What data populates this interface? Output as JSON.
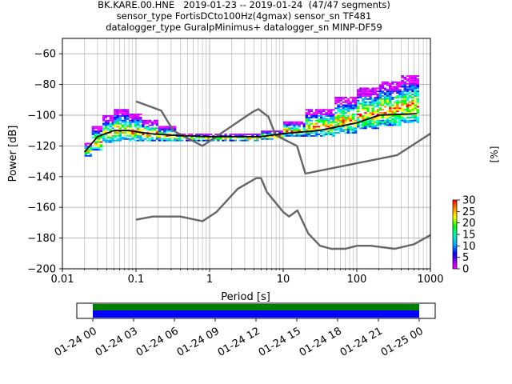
{
  "title_lines": [
    "BK.KARE.00.HNE   2019-01-23 -- 2019-01-24  (47/47 segments)",
    "sensor_type FortisDCto100Hz(4gmax) sensor_sn TF481",
    "datalogger_type GuralpMinimus+ datalogger_sn MINP-DF59"
  ],
  "colors": {
    "grid": "#b0b0b0",
    "noise_model": "#666666",
    "mean": "#000000",
    "coverage_green": "#008000",
    "coverage_blue": "#0000ff"
  },
  "chart_data": [
    {
      "type": "heatmap",
      "xlabel": "Period [s]",
      "ylabel": "Power [dB]",
      "x_scale": "log",
      "xlim": [
        0.01,
        1000
      ],
      "ylim": [
        -200,
        -50
      ],
      "x_ticks": [
        {
          "value": 0.01,
          "label": "0.01"
        },
        {
          "value": 0.1,
          "label": "0.1"
        },
        {
          "value": 1,
          "label": "1"
        },
        {
          "value": 10,
          "label": "10"
        },
        {
          "value": 100,
          "label": "100"
        },
        {
          "value": 1000,
          "label": "1000"
        }
      ],
      "y_ticks": [
        {
          "value": -60,
          "label": "−60"
        },
        {
          "value": -80,
          "label": "−80"
        },
        {
          "value": -100,
          "label": "−100"
        },
        {
          "value": -120,
          "label": "−120"
        },
        {
          "value": -140,
          "label": "−140"
        },
        {
          "value": -160,
          "label": "−160"
        },
        {
          "value": -180,
          "label": "−180"
        },
        {
          "value": -200,
          "label": "−200"
        }
      ],
      "grid": true,
      "colorbar": {
        "label": "[%]",
        "range": [
          0,
          30
        ],
        "ticks": [
          {
            "value": 0,
            "label": "0"
          },
          {
            "value": 5,
            "label": "5"
          },
          {
            "value": 10,
            "label": "10"
          },
          {
            "value": 15,
            "label": "15"
          },
          {
            "value": 20,
            "label": "20"
          },
          {
            "value": 25,
            "label": "25"
          },
          {
            "value": 30,
            "label": "30"
          }
        ]
      },
      "density_bands": [
        {
          "period_range": [
            0.02,
            0.025
          ],
          "db_range": [
            -126,
            -118
          ]
        },
        {
          "period_range": [
            0.025,
            0.035
          ],
          "db_range": [
            -122,
            -107
          ]
        },
        {
          "period_range": [
            0.035,
            0.05
          ],
          "db_range": [
            -117,
            -100
          ]
        },
        {
          "period_range": [
            0.05,
            0.08
          ],
          "db_range": [
            -116,
            -96
          ]
        },
        {
          "period_range": [
            0.08,
            0.12
          ],
          "db_range": [
            -116,
            -99
          ]
        },
        {
          "period_range": [
            0.12,
            0.2
          ],
          "db_range": [
            -116,
            -103
          ]
        },
        {
          "period_range": [
            0.2,
            0.35
          ],
          "db_range": [
            -116,
            -107
          ]
        },
        {
          "period_range": [
            0.35,
            1
          ],
          "db_range": [
            -116,
            -112
          ]
        },
        {
          "period_range": [
            1,
            5
          ],
          "db_range": [
            -116,
            -112
          ]
        },
        {
          "period_range": [
            5,
            10
          ],
          "db_range": [
            -115,
            -110
          ]
        },
        {
          "period_range": [
            10,
            20
          ],
          "db_range": [
            -113,
            -104
          ]
        },
        {
          "period_range": [
            20,
            50
          ],
          "db_range": [
            -113,
            -96
          ]
        },
        {
          "period_range": [
            50,
            100
          ],
          "db_range": [
            -111,
            -88
          ]
        },
        {
          "period_range": [
            100,
            200
          ],
          "db_range": [
            -108,
            -82
          ]
        },
        {
          "period_range": [
            200,
            400
          ],
          "db_range": [
            -106,
            -78
          ]
        },
        {
          "period_range": [
            400,
            700
          ],
          "db_range": [
            -104,
            -74
          ]
        }
      ],
      "mean_curve": [
        {
          "period": 0.02,
          "db": -124
        },
        {
          "period": 0.03,
          "db": -114
        },
        {
          "period": 0.05,
          "db": -110
        },
        {
          "period": 0.08,
          "db": -110
        },
        {
          "period": 0.15,
          "db": -112
        },
        {
          "period": 0.3,
          "db": -113
        },
        {
          "period": 1,
          "db": -114
        },
        {
          "period": 5,
          "db": -114
        },
        {
          "period": 10,
          "db": -112
        },
        {
          "period": 30,
          "db": -110
        },
        {
          "period": 100,
          "db": -105
        },
        {
          "period": 200,
          "db": -100
        },
        {
          "period": 650,
          "db": -99
        }
      ],
      "noise_models": [
        {
          "points": [
            {
              "period": 0.1,
              "db": -91
            },
            {
              "period": 0.22,
              "db": -97
            },
            {
              "period": 0.32,
              "db": -110
            },
            {
              "period": 0.8,
              "db": -120
            },
            {
              "period": 3.8,
              "db": -98
            },
            {
              "period": 4.6,
              "db": -96
            },
            {
              "period": 6.3,
              "db": -101
            },
            {
              "period": 7.9,
              "db": -113
            },
            {
              "period": 15.4,
              "db": -120
            },
            {
              "period": 20,
              "db": -138
            },
            {
              "period": 354,
              "db": -126
            },
            {
              "period": 1000,
              "db": -112
            }
          ]
        },
        {
          "points": [
            {
              "period": 0.1,
              "db": -168
            },
            {
              "period": 0.17,
              "db": -166
            },
            {
              "period": 0.4,
              "db": -166
            },
            {
              "period": 0.8,
              "db": -169
            },
            {
              "period": 1.24,
              "db": -163
            },
            {
              "period": 2.4,
              "db": -148
            },
            {
              "period": 4.3,
              "db": -141
            },
            {
              "period": 5,
              "db": -141
            },
            {
              "period": 6,
              "db": -150
            },
            {
              "period": 10,
              "db": -163
            },
            {
              "period": 12,
              "db": -166
            },
            {
              "period": 15.6,
              "db": -162
            },
            {
              "period": 21.9,
              "db": -177
            },
            {
              "period": 31.6,
              "db": -185
            },
            {
              "period": 45,
              "db": -187
            },
            {
              "period": 70,
              "db": -187
            },
            {
              "period": 101,
              "db": -185
            },
            {
              "period": 154,
              "db": -185
            },
            {
              "period": 328,
              "db": -187
            },
            {
              "period": 600,
              "db": -184
            },
            {
              "period": 1000,
              "db": -178
            }
          ]
        }
      ]
    },
    {
      "type": "bar",
      "tick_labels": [
        "01-24 00",
        "01-24 03",
        "01-24 06",
        "01-24 09",
        "01-24 12",
        "01-24 15",
        "01-24 18",
        "01-24 21",
        "01-25 00"
      ],
      "coverage_hours": [
        0,
        24
      ]
    }
  ]
}
